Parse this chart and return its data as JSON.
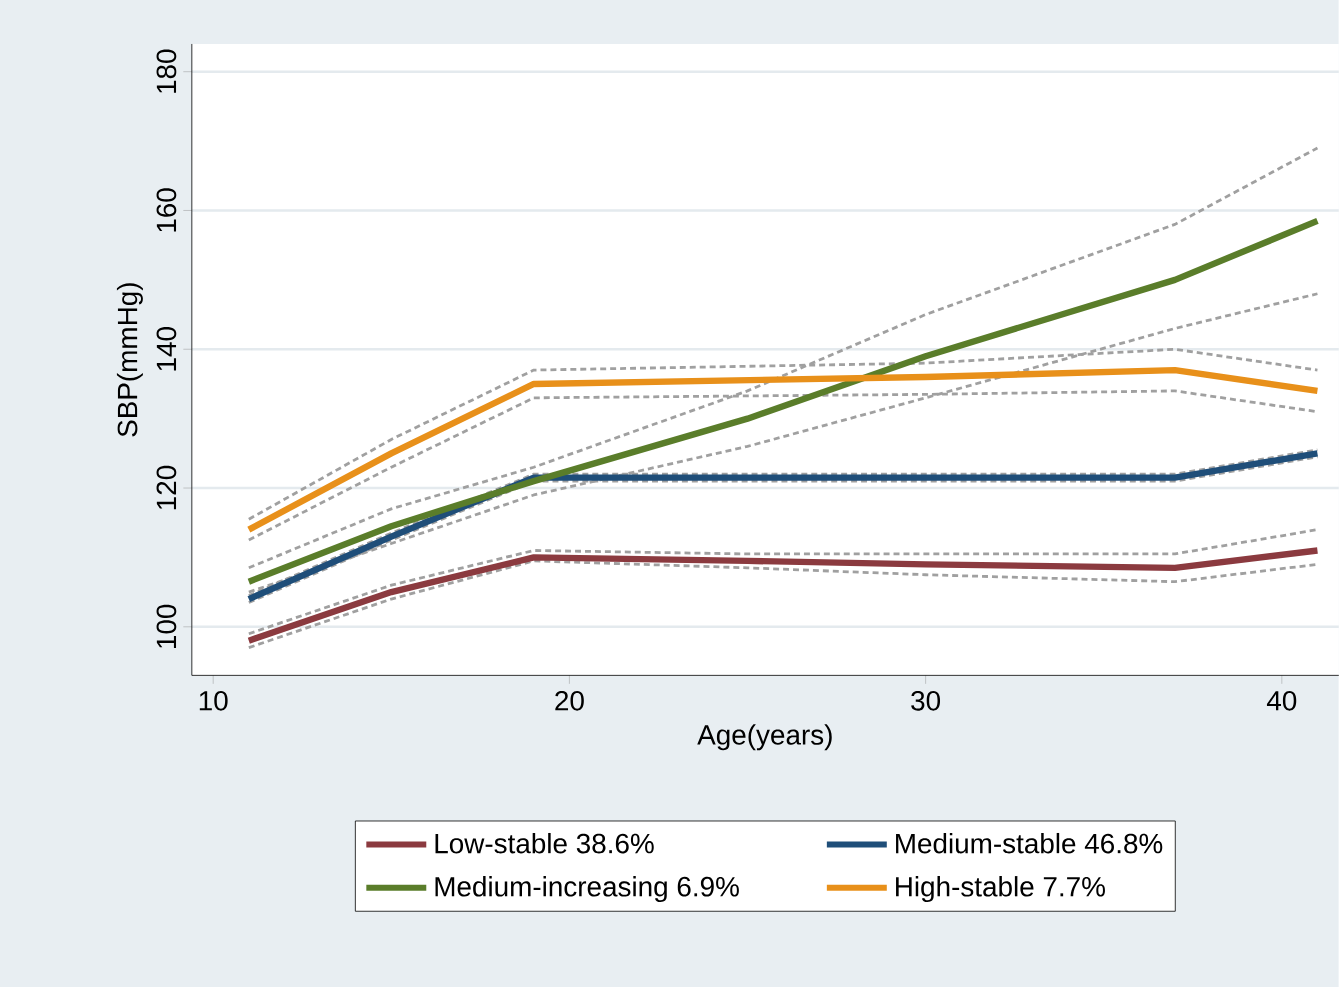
{
  "chart_data": {
    "type": "line",
    "xlabel": "Age(years)",
    "ylabel": "SBP(mmHg)",
    "xlim": [
      9.4,
      41.6
    ],
    "ylim": [
      93,
      184
    ],
    "xticks": [
      10,
      20,
      30,
      40
    ],
    "yticks": [
      100,
      120,
      140,
      160,
      180
    ],
    "grid": "y",
    "legend": "bottom",
    "marker": "none",
    "line_style": "solid",
    "series": [
      {
        "color": "#a0a0a0",
        "line_style": "dashed",
        "x": [
          11,
          15,
          19,
          25,
          30,
          37,
          41
        ],
        "values": [
          97,
          104,
          109.5,
          108.5,
          107.5,
          106.5,
          109
        ]
      },
      {
        "color": "#a0a0a0",
        "line_style": "dashed",
        "x": [
          11,
          15,
          19,
          25,
          30,
          37,
          41
        ],
        "values": [
          99,
          106,
          111,
          110.5,
          110.5,
          110.5,
          114
        ]
      },
      {
        "color": "#a0a0a0",
        "line_style": "dashed",
        "x": [
          11,
          15,
          19,
          30,
          37,
          41
        ],
        "values": [
          103.5,
          112.5,
          121,
          121,
          121,
          124.5
        ]
      },
      {
        "color": "#a0a0a0",
        "line_style": "dashed",
        "x": [
          11,
          15,
          19,
          30,
          37,
          41
        ],
        "values": [
          104.5,
          113.5,
          122,
          122,
          122,
          125.5
        ]
      },
      {
        "color": "#a0a0a0",
        "line_style": "dashed",
        "x": [
          11,
          15,
          19,
          25,
          30,
          37,
          41
        ],
        "values": [
          105,
          112,
          119,
          126,
          133,
          143,
          148
        ]
      },
      {
        "color": "#a0a0a0",
        "line_style": "dashed",
        "x": [
          11,
          15,
          19,
          25,
          30,
          37,
          41
        ],
        "values": [
          108.5,
          117,
          123,
          134,
          145,
          158,
          169
        ]
      },
      {
        "color": "#a0a0a0",
        "line_style": "dashed",
        "x": [
          11,
          15,
          19,
          30,
          37,
          41
        ],
        "values": [
          112.5,
          123,
          133,
          133.5,
          134,
          131
        ]
      },
      {
        "color": "#a0a0a0",
        "line_style": "dashed",
        "x": [
          11,
          15,
          19,
          30,
          37,
          41
        ],
        "values": [
          115.5,
          127,
          137,
          138,
          140,
          137
        ]
      },
      {
        "name": "Low-stable 38.6%",
        "color": "#8b3a3f",
        "x": [
          11,
          15,
          19,
          25,
          30,
          37,
          41
        ],
        "values": [
          98,
          105,
          110,
          109.5,
          109,
          108.5,
          111
        ]
      },
      {
        "name": "Medium-stable 46.8%",
        "color": "#1f4e79",
        "x": [
          11,
          15,
          19,
          30,
          37,
          41
        ],
        "values": [
          104,
          113,
          121.5,
          121.5,
          121.5,
          125
        ]
      },
      {
        "name": "Medium-increasing 6.9%",
        "color": "#5a7d2a",
        "x": [
          11,
          15,
          19,
          25,
          30,
          37,
          41
        ],
        "values": [
          106.5,
          114.5,
          121,
          130,
          139,
          150,
          158.5
        ]
      },
      {
        "name": "High-stable 7.7%",
        "color": "#e8901a",
        "x": [
          11,
          15,
          19,
          30,
          37,
          41
        ],
        "values": [
          114,
          125,
          135,
          136,
          137,
          134
        ]
      }
    ]
  }
}
